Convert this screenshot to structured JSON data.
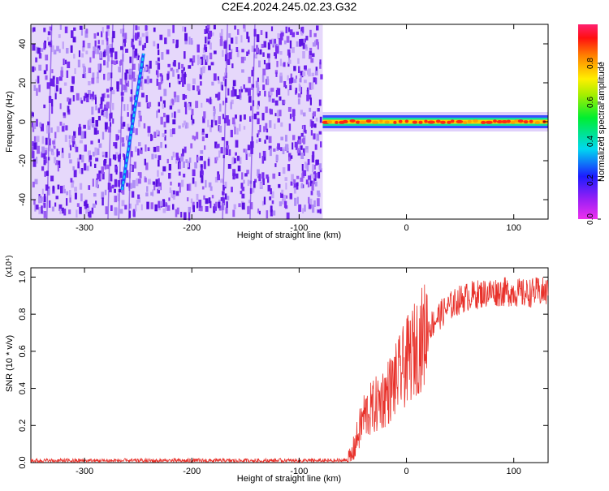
{
  "title": "C2E4.2024.245.02.23.G32",
  "colors": {
    "snr_line": "#e8312a",
    "spectrogram_noise": "#7a2ff0",
    "spectrogram_background": "#ffffff"
  },
  "chart_data": [
    {
      "type": "heatmap",
      "name": "spectrogram",
      "xlabel": "Height of straight line (km)",
      "ylabel": "Frequency (Hz)",
      "xlim": [
        -350,
        132
      ],
      "ylim": [
        -50,
        50
      ],
      "xticks": [
        -300,
        -200,
        -100,
        0,
        100
      ],
      "yticks": [
        -40,
        -20,
        0,
        20,
        40
      ],
      "noise_region_x": [
        -350,
        -78
      ],
      "signal_region_x": [
        -78,
        132
      ],
      "signal_frequency": 0,
      "diagonal_streak": {
        "x": [
          -265,
          -245
        ],
        "y": [
          -35,
          35
        ]
      },
      "colorbar": {
        "label": "Normalized spectral amplitude",
        "range": [
          0,
          1
        ],
        "ticks": [
          0.0,
          0.2,
          0.4,
          0.6,
          0.8
        ],
        "colormap": "rainbow (magenta-blue-cyan-green-yellow-red)"
      }
    },
    {
      "type": "line",
      "name": "snr",
      "xlabel": "Height of straight line (km)",
      "ylabel": "SNR (10 * v/v)",
      "multiplier": "(x10⁴)",
      "xlim": [
        -350,
        132
      ],
      "ylim": [
        0,
        1.05
      ],
      "xticks": [
        -300,
        -200,
        -100,
        0,
        100
      ],
      "yticks": [
        0.0,
        0.2,
        0.4,
        0.6,
        0.8,
        1.0
      ],
      "series": [
        {
          "x": [
            -350,
            -300,
            -250,
            -200,
            -150,
            -100,
            -60,
            -52,
            -45,
            -40,
            -30,
            -20,
            -10,
            0,
            10,
            20,
            30,
            40,
            50,
            60,
            70,
            80,
            90,
            100,
            110,
            120,
            132
          ],
          "y": [
            0.01,
            0.01,
            0.01,
            0.01,
            0.01,
            0.01,
            0.01,
            0.02,
            0.15,
            0.25,
            0.3,
            0.36,
            0.44,
            0.54,
            0.63,
            0.72,
            0.79,
            0.84,
            0.88,
            0.9,
            0.91,
            0.92,
            0.92,
            0.92,
            0.91,
            0.92,
            0.92
          ]
        }
      ]
    }
  ]
}
